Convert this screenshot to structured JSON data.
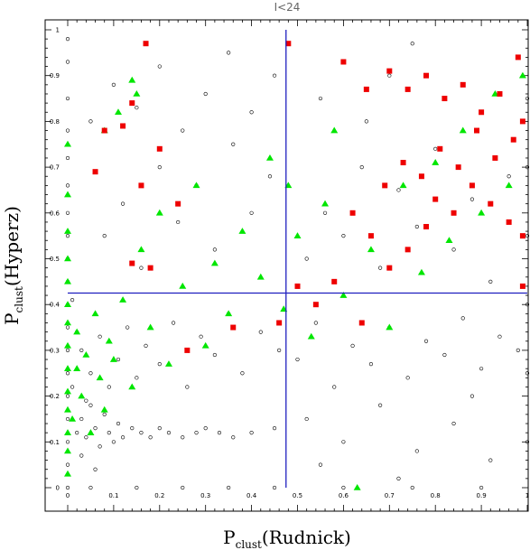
{
  "chart_data": {
    "type": "scatter",
    "title": "I<24",
    "xlabel_main": "P",
    "xlabel_sub": "clust",
    "xlabel_rest": "(Rudnick)",
    "ylabel_main": "P",
    "ylabel_sub": "clust",
    "ylabel_rest": "(Hyperz)",
    "xlim": [
      0,
      1
    ],
    "ylim": [
      0,
      1
    ],
    "xticks": [
      "0",
      "0.1",
      "0.2",
      "0.3",
      "0.4",
      "0.5",
      "0.6",
      "0.7",
      "0.8",
      "0.9",
      "1"
    ],
    "yticks": [
      "0",
      "0.1",
      "0.2",
      "0.3",
      "0.4",
      "0.5",
      "0.6",
      "0.7",
      "0.8",
      "0.9",
      "1"
    ],
    "reference_lines": {
      "x": 0.475,
      "y": 0.425,
      "color": "#1f1fbf"
    },
    "series": [
      {
        "marker": "open-circle",
        "color": "#000000",
        "points": [
          [
            0.0,
            0.98
          ],
          [
            0.0,
            0.93
          ],
          [
            0.0,
            0.85
          ],
          [
            0.0,
            0.78
          ],
          [
            0.0,
            0.72
          ],
          [
            0.0,
            0.66
          ],
          [
            0.0,
            0.6
          ],
          [
            0.0,
            0.55
          ],
          [
            0.0,
            0.5
          ],
          [
            0.0,
            0.45
          ],
          [
            0.0,
            0.4
          ],
          [
            0.0,
            0.35
          ],
          [
            0.0,
            0.3
          ],
          [
            0.0,
            0.25
          ],
          [
            0.0,
            0.2
          ],
          [
            0.0,
            0.15
          ],
          [
            0.0,
            0.1
          ],
          [
            0.0,
            0.05
          ],
          [
            0.0,
            0.0
          ],
          [
            0.02,
            0.12
          ],
          [
            0.03,
            0.15
          ],
          [
            0.04,
            0.11
          ],
          [
            0.05,
            0.18
          ],
          [
            0.06,
            0.13
          ],
          [
            0.07,
            0.09
          ],
          [
            0.08,
            0.16
          ],
          [
            0.09,
            0.12
          ],
          [
            0.1,
            0.1
          ],
          [
            0.11,
            0.14
          ],
          [
            0.12,
            0.11
          ],
          [
            0.14,
            0.13
          ],
          [
            0.16,
            0.12
          ],
          [
            0.18,
            0.11
          ],
          [
            0.2,
            0.13
          ],
          [
            0.22,
            0.12
          ],
          [
            0.25,
            0.11
          ],
          [
            0.28,
            0.12
          ],
          [
            0.3,
            0.13
          ],
          [
            0.33,
            0.12
          ],
          [
            0.36,
            0.11
          ],
          [
            0.4,
            0.12
          ],
          [
            0.45,
            0.13
          ],
          [
            0.03,
            0.3
          ],
          [
            0.05,
            0.25
          ],
          [
            0.07,
            0.33
          ],
          [
            0.09,
            0.22
          ],
          [
            0.11,
            0.28
          ],
          [
            0.13,
            0.35
          ],
          [
            0.15,
            0.24
          ],
          [
            0.17,
            0.31
          ],
          [
            0.2,
            0.27
          ],
          [
            0.23,
            0.36
          ],
          [
            0.26,
            0.22
          ],
          [
            0.29,
            0.33
          ],
          [
            0.32,
            0.29
          ],
          [
            0.35,
            0.38
          ],
          [
            0.38,
            0.25
          ],
          [
            0.42,
            0.34
          ],
          [
            0.46,
            0.3
          ],
          [
            0.5,
            0.28
          ],
          [
            0.54,
            0.36
          ],
          [
            0.58,
            0.22
          ],
          [
            0.62,
            0.31
          ],
          [
            0.66,
            0.27
          ],
          [
            0.7,
            0.35
          ],
          [
            0.74,
            0.24
          ],
          [
            0.78,
            0.32
          ],
          [
            0.82,
            0.29
          ],
          [
            0.86,
            0.37
          ],
          [
            0.9,
            0.26
          ],
          [
            0.94,
            0.33
          ],
          [
            0.98,
            0.3
          ],
          [
            0.52,
            0.15
          ],
          [
            0.6,
            0.1
          ],
          [
            0.68,
            0.18
          ],
          [
            0.76,
            0.08
          ],
          [
            0.84,
            0.14
          ],
          [
            0.92,
            0.06
          ],
          [
            0.55,
            0.05
          ],
          [
            0.72,
            0.02
          ],
          [
            0.88,
            0.2
          ],
          [
            0.08,
            0.55
          ],
          [
            0.12,
            0.62
          ],
          [
            0.16,
            0.48
          ],
          [
            0.2,
            0.7
          ],
          [
            0.24,
            0.58
          ],
          [
            0.28,
            0.66
          ],
          [
            0.32,
            0.52
          ],
          [
            0.36,
            0.75
          ],
          [
            0.4,
            0.6
          ],
          [
            0.44,
            0.68
          ],
          [
            0.05,
            0.8
          ],
          [
            0.1,
            0.88
          ],
          [
            0.15,
            0.83
          ],
          [
            0.2,
            0.92
          ],
          [
            0.25,
            0.78
          ],
          [
            0.3,
            0.86
          ],
          [
            0.35,
            0.95
          ],
          [
            0.4,
            0.82
          ],
          [
            0.45,
            0.9
          ],
          [
            0.52,
            0.5
          ],
          [
            0.56,
            0.6
          ],
          [
            0.6,
            0.55
          ],
          [
            0.64,
            0.7
          ],
          [
            0.68,
            0.48
          ],
          [
            0.72,
            0.65
          ],
          [
            0.76,
            0.57
          ],
          [
            0.8,
            0.74
          ],
          [
            0.84,
            0.52
          ],
          [
            0.88,
            0.63
          ],
          [
            0.92,
            0.45
          ],
          [
            0.96,
            0.68
          ],
          [
            0.55,
            0.85
          ],
          [
            0.6,
            0.93
          ],
          [
            0.65,
            0.8
          ],
          [
            0.7,
            0.9
          ],
          [
            0.75,
            0.97
          ],
          [
            0.05,
            0.0
          ],
          [
            0.15,
            0.0
          ],
          [
            0.25,
            0.0
          ],
          [
            0.35,
            0.0
          ],
          [
            0.45,
            0.0
          ],
          [
            0.6,
            0.0
          ],
          [
            0.75,
            0.0
          ],
          [
            0.9,
            0.0
          ],
          [
            1.0,
            0.1
          ],
          [
            1.0,
            0.25
          ],
          [
            1.0,
            0.4
          ],
          [
            1.0,
            0.55
          ],
          [
            1.0,
            0.7
          ],
          [
            1.0,
            0.85
          ],
          [
            0.01,
            0.22
          ],
          [
            0.02,
            0.34
          ],
          [
            0.01,
            0.41
          ],
          [
            0.03,
            0.07
          ],
          [
            0.04,
            0.19
          ],
          [
            0.06,
            0.04
          ]
        ]
      },
      {
        "marker": "filled-triangle",
        "color": "#00e600",
        "points": [
          [
            0.0,
            0.03
          ],
          [
            0.0,
            0.08
          ],
          [
            0.0,
            0.12
          ],
          [
            0.0,
            0.17
          ],
          [
            0.0,
            0.21
          ],
          [
            0.0,
            0.26
          ],
          [
            0.0,
            0.31
          ],
          [
            0.0,
            0.36
          ],
          [
            0.0,
            0.4
          ],
          [
            0.0,
            0.45
          ],
          [
            0.0,
            0.5
          ],
          [
            0.0,
            0.56
          ],
          [
            0.0,
            0.64
          ],
          [
            0.0,
            0.75
          ],
          [
            0.01,
            0.15
          ],
          [
            0.02,
            0.26
          ],
          [
            0.02,
            0.34
          ],
          [
            0.03,
            0.2
          ],
          [
            0.04,
            0.29
          ],
          [
            0.05,
            0.12
          ],
          [
            0.06,
            0.38
          ],
          [
            0.07,
            0.24
          ],
          [
            0.08,
            0.17
          ],
          [
            0.09,
            0.32
          ],
          [
            0.1,
            0.28
          ],
          [
            0.12,
            0.41
          ],
          [
            0.14,
            0.22
          ],
          [
            0.16,
            0.52
          ],
          [
            0.18,
            0.35
          ],
          [
            0.2,
            0.6
          ],
          [
            0.22,
            0.27
          ],
          [
            0.25,
            0.44
          ],
          [
            0.28,
            0.66
          ],
          [
            0.3,
            0.31
          ],
          [
            0.32,
            0.49
          ],
          [
            0.35,
            0.38
          ],
          [
            0.38,
            0.56
          ],
          [
            0.42,
            0.46
          ],
          [
            0.44,
            0.72
          ],
          [
            0.47,
            0.39
          ],
          [
            0.5,
            0.55
          ],
          [
            0.53,
            0.33
          ],
          [
            0.56,
            0.62
          ],
          [
            0.6,
            0.42
          ],
          [
            0.63,
            0.0
          ],
          [
            0.66,
            0.52
          ],
          [
            0.7,
            0.35
          ],
          [
            0.73,
            0.66
          ],
          [
            0.77,
            0.47
          ],
          [
            0.8,
            0.71
          ],
          [
            0.83,
            0.54
          ],
          [
            0.86,
            0.78
          ],
          [
            0.9,
            0.6
          ],
          [
            0.93,
            0.86
          ],
          [
            0.96,
            0.66
          ],
          [
            0.99,
            0.9
          ],
          [
            0.11,
            0.82
          ],
          [
            0.15,
            0.86
          ],
          [
            0.08,
            0.78
          ],
          [
            0.14,
            0.89
          ],
          [
            0.48,
            0.66
          ],
          [
            0.58,
            0.78
          ]
        ]
      },
      {
        "marker": "filled-square",
        "color": "#ee0000",
        "points": [
          [
            0.17,
            0.97
          ],
          [
            0.48,
            0.97
          ],
          [
            0.6,
            0.93
          ],
          [
            0.65,
            0.87
          ],
          [
            0.7,
            0.91
          ],
          [
            0.74,
            0.87
          ],
          [
            0.78,
            0.9
          ],
          [
            0.82,
            0.85
          ],
          [
            0.86,
            0.88
          ],
          [
            0.9,
            0.82
          ],
          [
            0.94,
            0.86
          ],
          [
            0.98,
            0.94
          ],
          [
            0.99,
            0.8
          ],
          [
            0.97,
            0.76
          ],
          [
            0.93,
            0.72
          ],
          [
            0.89,
            0.78
          ],
          [
            0.85,
            0.7
          ],
          [
            0.81,
            0.74
          ],
          [
            0.77,
            0.68
          ],
          [
            0.73,
            0.71
          ],
          [
            0.69,
            0.66
          ],
          [
            0.8,
            0.63
          ],
          [
            0.84,
            0.6
          ],
          [
            0.88,
            0.66
          ],
          [
            0.92,
            0.62
          ],
          [
            0.96,
            0.58
          ],
          [
            0.99,
            0.55
          ],
          [
            0.78,
            0.57
          ],
          [
            0.74,
            0.52
          ],
          [
            0.7,
            0.48
          ],
          [
            0.66,
            0.55
          ],
          [
            0.62,
            0.6
          ],
          [
            0.58,
            0.45
          ],
          [
            0.54,
            0.4
          ],
          [
            0.5,
            0.44
          ],
          [
            0.46,
            0.36
          ],
          [
            0.06,
            0.69
          ],
          [
            0.08,
            0.78
          ],
          [
            0.12,
            0.79
          ],
          [
            0.14,
            0.84
          ],
          [
            0.16,
            0.66
          ],
          [
            0.2,
            0.74
          ],
          [
            0.24,
            0.62
          ],
          [
            0.18,
            0.48
          ],
          [
            0.14,
            0.49
          ],
          [
            0.26,
            0.3
          ],
          [
            0.36,
            0.35
          ],
          [
            0.64,
            0.36
          ],
          [
            0.99,
            0.44
          ]
        ]
      }
    ]
  }
}
